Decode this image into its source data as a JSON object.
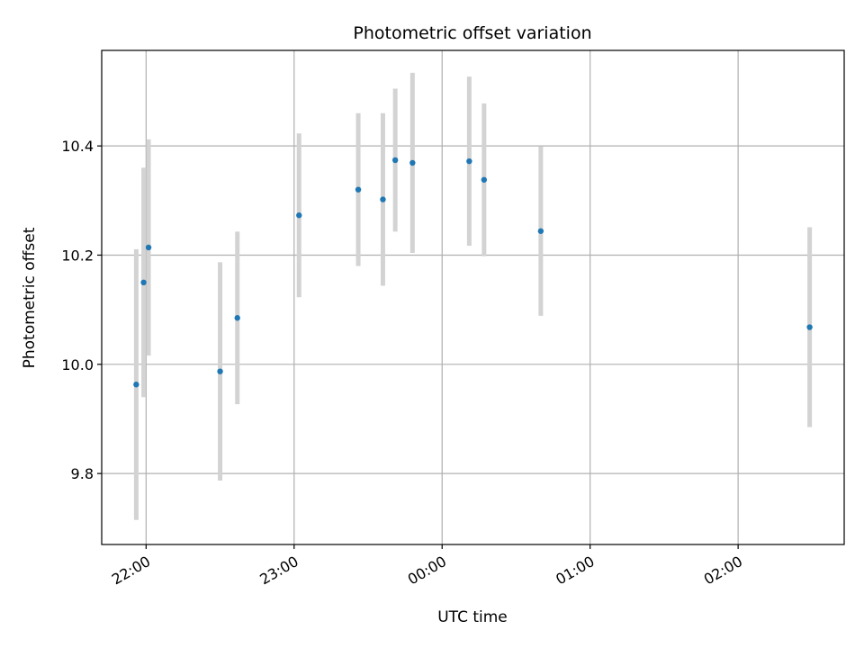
{
  "chart_data": {
    "type": "scatter",
    "title": "Photometric offset variation",
    "xlabel": "UTC time",
    "ylabel": "Photometric offset",
    "x_tick_labels": [
      "22:00",
      "23:00",
      "00:00",
      "01:00",
      "02:00"
    ],
    "x_ticks": [
      "22:00",
      "23:00",
      "00:00",
      "01:00",
      "02:00"
    ],
    "xlim": [
      "21:42",
      "02:43"
    ],
    "y_ticks": [
      9.8,
      10.0,
      10.2,
      10.4
    ],
    "ylim": [
      9.67,
      10.575
    ],
    "grid": true,
    "marker_color": "#1f77b4",
    "errorbar_color": "#d3d3d3",
    "points": [
      {
        "time": "21:56",
        "value": 9.963,
        "err": 0.248
      },
      {
        "time": "21:59",
        "value": 10.15,
        "err": 0.21
      },
      {
        "time": "22:01",
        "value": 10.214,
        "err": 0.198
      },
      {
        "time": "22:30",
        "value": 9.987,
        "err": 0.2
      },
      {
        "time": "22:37",
        "value": 10.085,
        "err": 0.158
      },
      {
        "time": "23:02",
        "value": 10.273,
        "err": 0.15
      },
      {
        "time": "23:26",
        "value": 10.32,
        "err": 0.14
      },
      {
        "time": "23:36",
        "value": 10.302,
        "err": 0.158
      },
      {
        "time": "23:41",
        "value": 10.374,
        "err": 0.131
      },
      {
        "time": "23:48",
        "value": 10.369,
        "err": 0.165
      },
      {
        "time": "00:11",
        "value": 10.372,
        "err": 0.155
      },
      {
        "time": "00:17",
        "value": 10.338,
        "err": 0.14
      },
      {
        "time": "00:40",
        "value": 10.244,
        "err": 0.155
      },
      {
        "time": "02:29",
        "value": 10.068,
        "err": 0.183
      }
    ]
  }
}
